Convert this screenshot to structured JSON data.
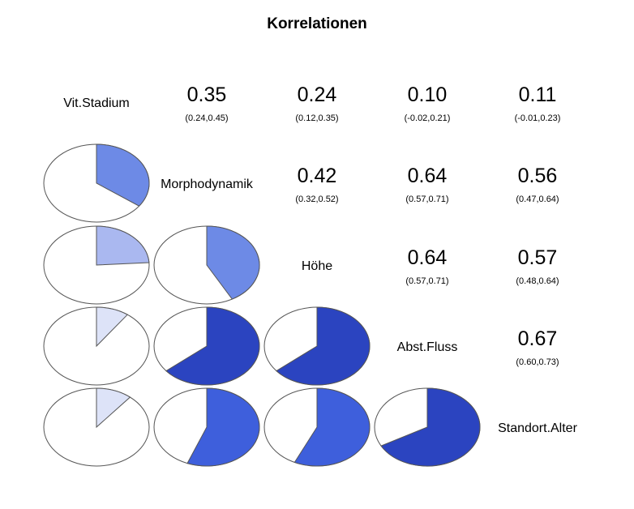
{
  "title": "Korrelationen",
  "chart_data": {
    "type": "correlogram",
    "title": "Korrelationen",
    "variables": [
      "Vit.Stadium",
      "Morphodynamik",
      "Höhe",
      "Abst.Fluss",
      "Standort.Alter"
    ],
    "upper_panel": "correlation coefficient with 95% confidence interval",
    "lower_panel": "pie (filled fraction = correlation)",
    "correlations": [
      {
        "row": 0,
        "col": 1,
        "r": 0.35,
        "r_label": "0.35",
        "ci_label": "(0.24,0.45)",
        "ci": [
          0.24,
          0.45
        ]
      },
      {
        "row": 0,
        "col": 2,
        "r": 0.24,
        "r_label": "0.24",
        "ci_label": "(0.12,0.35)",
        "ci": [
          0.12,
          0.35
        ]
      },
      {
        "row": 0,
        "col": 3,
        "r": 0.1,
        "r_label": "0.10",
        "ci_label": "(-0.02,0.21)",
        "ci": [
          -0.02,
          0.21
        ]
      },
      {
        "row": 0,
        "col": 4,
        "r": 0.11,
        "r_label": "0.11",
        "ci_label": "(-0.01,0.23)",
        "ci": [
          -0.01,
          0.23
        ]
      },
      {
        "row": 1,
        "col": 2,
        "r": 0.42,
        "r_label": "0.42",
        "ci_label": "(0.32,0.52)",
        "ci": [
          0.32,
          0.52
        ]
      },
      {
        "row": 1,
        "col": 3,
        "r": 0.64,
        "r_label": "0.64",
        "ci_label": "(0.57,0.71)",
        "ci": [
          0.57,
          0.71
        ]
      },
      {
        "row": 1,
        "col": 4,
        "r": 0.56,
        "r_label": "0.56",
        "ci_label": "(0.47,0.64)",
        "ci": [
          0.47,
          0.64
        ]
      },
      {
        "row": 2,
        "col": 3,
        "r": 0.64,
        "r_label": "0.64",
        "ci_label": "(0.57,0.71)",
        "ci": [
          0.57,
          0.71
        ]
      },
      {
        "row": 2,
        "col": 4,
        "r": 0.57,
        "r_label": "0.57",
        "ci_label": "(0.48,0.64)",
        "ci": [
          0.48,
          0.64
        ]
      },
      {
        "row": 3,
        "col": 4,
        "r": 0.67,
        "r_label": "0.67",
        "ci_label": "(0.60,0.73)",
        "ci": [
          0.6,
          0.73
        ]
      }
    ],
    "colors": {
      "very_weak": "#dde3f8",
      "weak": "#aab8f0",
      "moderate": "#6d8ae6",
      "strong": "#3e5fdc",
      "very_strong": "#2b44c0"
    }
  }
}
